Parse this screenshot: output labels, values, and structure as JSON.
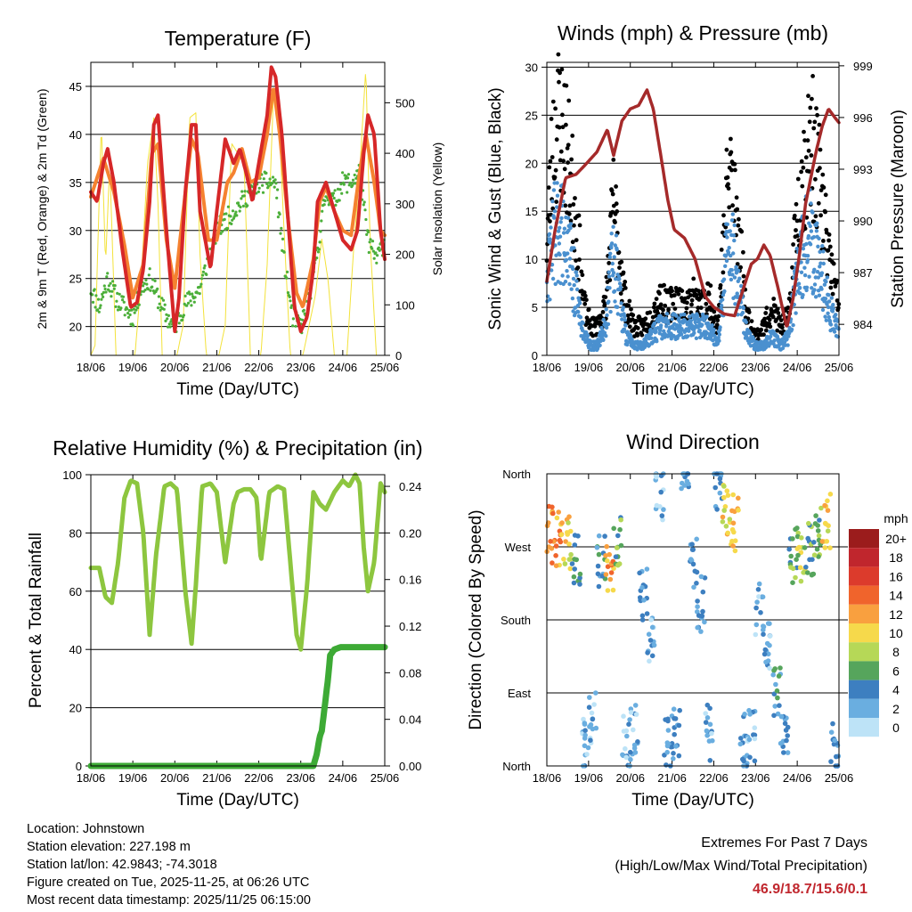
{
  "x_tick_labels": [
    "18/06",
    "19/06",
    "20/06",
    "21/06",
    "22/06",
    "23/06",
    "24/06",
    "25/06"
  ],
  "panels": {
    "temperature": {
      "title": "Temperature (F)",
      "ylabel_left": "2m & 9m T (Red, Orange) & 2m Td (Green)",
      "ylabel_right": "Solar Insolation (Yellow)",
      "xlabel": "Time (Day/UTC)",
      "left_ticks": [
        "20",
        "25",
        "30",
        "35",
        "40",
        "45"
      ],
      "right_ticks": [
        "0",
        "100",
        "200",
        "300",
        "400",
        "500"
      ]
    },
    "winds": {
      "title": "Winds (mph) & Pressure (mb)",
      "ylabel_left": "Sonic Wind & Gust (Blue, Black)",
      "ylabel_right": "Station Pressure (Maroon)",
      "xlabel": "Time (Day/UTC)",
      "left_ticks": [
        "0",
        "5",
        "10",
        "15",
        "20",
        "25",
        "30"
      ],
      "right_ticks": [
        "984",
        "987",
        "990",
        "993",
        "996",
        "999"
      ]
    },
    "humidity": {
      "title": "Relative Humidity (%) & Precipitation (in)",
      "ylabel_left": "Percent & Total Rainfall",
      "xlabel": "Time (Day/UTC)",
      "left_ticks": [
        "0",
        "20",
        "40",
        "60",
        "80",
        "100"
      ],
      "right_ticks": [
        "0.00",
        "0.04",
        "0.08",
        "0.12",
        "0.16",
        "0.20",
        "0.24"
      ]
    },
    "direction": {
      "title": "Wind Direction",
      "ylabel_left": "Direction (Colored By Speed)",
      "xlabel": "Time (Day/UTC)",
      "dir_ticks": [
        "North",
        "East",
        "South",
        "West",
        "North"
      ],
      "legend_title": "mph",
      "legend_labels": [
        "20+",
        "18",
        "16",
        "14",
        "12",
        "10",
        "8",
        "6",
        "4",
        "2",
        "0"
      ],
      "legend_colors": [
        "#9b1c1c",
        "#c0262d",
        "#dc3b2c",
        "#f0642c",
        "#f9a03f",
        "#f6d94b",
        "#b6d857",
        "#56a55c",
        "#3d7fc0",
        "#6aaee0",
        "#bde3f7"
      ]
    }
  },
  "chart_data": [
    {
      "type": "line",
      "title": "Temperature (F)",
      "xlabel": "Time (Day/UTC)",
      "ylabel": "2m & 9m T (Red, Orange) & 2m Td (Green)",
      "ylabel_right": "Solar Insolation (Yellow)",
      "x_unit": "days since 18/06",
      "ylim": [
        17,
        47.5
      ],
      "ylim_right": [
        0,
        580
      ],
      "series": [
        {
          "name": "2m T",
          "color": "#d62728",
          "axis": "left",
          "x": [
            0,
            0.15,
            0.3,
            0.4,
            0.55,
            0.75,
            0.95,
            1.1,
            1.25,
            1.4,
            1.5,
            1.6,
            1.8,
            2.0,
            2.1,
            2.25,
            2.4,
            2.5,
            2.6,
            2.85,
            3.0,
            3.2,
            3.4,
            3.55,
            3.7,
            3.85,
            4.0,
            4.2,
            4.3,
            4.4,
            4.55,
            4.7,
            4.85,
            5.0,
            5.15,
            5.3,
            5.4,
            5.6,
            5.8,
            6.0,
            6.2,
            6.35,
            6.5,
            6.6,
            6.75,
            6.9,
            7.0
          ],
          "values": [
            34,
            33,
            37,
            38.5,
            35,
            28,
            22,
            22.5,
            26,
            33,
            41,
            42,
            30,
            19.5,
            23,
            34,
            41,
            41,
            32,
            26,
            32,
            39.5,
            37,
            38.5,
            36,
            33,
            37,
            42,
            47,
            46,
            40,
            31,
            22,
            19.5,
            21,
            26,
            33,
            35,
            32,
            29,
            28,
            30,
            38,
            42,
            40,
            30,
            27
          ]
        },
        {
          "name": "9m T",
          "color": "#f58230",
          "axis": "left",
          "x": [
            0,
            0.3,
            0.55,
            0.8,
            1.0,
            1.25,
            1.45,
            1.6,
            1.8,
            2.0,
            2.2,
            2.4,
            2.55,
            2.8,
            3.0,
            3.25,
            3.4,
            3.6,
            3.8,
            4.0,
            4.2,
            4.35,
            4.5,
            4.7,
            4.9,
            5.05,
            5.3,
            5.45,
            5.6,
            5.8,
            6.0,
            6.2,
            6.4,
            6.55,
            6.75,
            6.9,
            7.0
          ],
          "values": [
            33.5,
            37.5,
            34,
            28.5,
            23,
            26.5,
            38,
            39,
            29,
            24,
            32,
            39.5,
            38,
            29,
            29,
            35,
            36,
            38.5,
            35,
            35.5,
            40,
            45,
            40,
            31,
            23.5,
            22,
            27,
            33,
            34.5,
            32,
            30,
            29.5,
            36,
            40,
            35,
            30,
            29.5
          ]
        },
        {
          "name": "2m Td",
          "color": "#4caf3a",
          "axis": "left",
          "x": [
            0,
            0.2,
            0.4,
            0.6,
            0.8,
            1.0,
            1.2,
            1.4,
            1.6,
            1.8,
            2.0,
            2.2,
            2.4,
            2.6,
            2.8,
            3.0,
            3.2,
            3.4,
            3.6,
            3.8,
            4.0,
            4.2,
            4.4,
            4.6,
            4.8,
            5.0,
            5.2,
            5.4,
            5.6,
            5.8,
            6.0,
            6.2,
            6.4,
            6.6,
            6.8,
            7.0
          ],
          "values": [
            24,
            22,
            25,
            23,
            22,
            21,
            24,
            25,
            23,
            21,
            20,
            22,
            23,
            24,
            27,
            30,
            31,
            32,
            33,
            34,
            35,
            35,
            35,
            27,
            21,
            20,
            23,
            28,
            34,
            33,
            35,
            35,
            36,
            29,
            27,
            29
          ]
        },
        {
          "name": "Solar Insolation",
          "color": "#f3e23a",
          "axis": "right",
          "x": [
            0,
            0.1,
            0.25,
            0.35,
            0.45,
            0.6,
            0.9,
            1.05,
            1.2,
            1.35,
            1.5,
            1.6,
            1.7,
            1.9,
            2.05,
            2.2,
            2.35,
            2.5,
            2.6,
            2.75,
            2.9,
            3.05,
            3.2,
            3.35,
            3.5,
            3.65,
            3.8,
            3.95,
            4.05,
            4.2,
            4.35,
            4.45,
            4.6,
            4.75,
            4.9,
            5.05,
            5.2,
            5.35,
            5.5,
            5.65,
            5.8,
            5.95,
            6.1,
            6.25,
            6.4,
            6.55,
            6.65,
            6.8,
            6.95,
            7.0
          ],
          "values": [
            0,
            20,
            460,
            180,
            380,
            0,
            0,
            0,
            150,
            380,
            470,
            300,
            0,
            0,
            0,
            60,
            470,
            480,
            200,
            0,
            0,
            0,
            60,
            420,
            400,
            380,
            0,
            0,
            0,
            180,
            520,
            520,
            250,
            0,
            0,
            0,
            60,
            120,
            230,
            150,
            0,
            0,
            0,
            200,
            360,
            570,
            230,
            0,
            0,
            0
          ]
        }
      ]
    },
    {
      "type": "scatter",
      "title": "Winds (mph) & Pressure (mb)",
      "xlabel": "Time (Day/UTC)",
      "ylabel": "Sonic Wind & Gust (Blue, Black)",
      "ylabel_right": "Station Pressure (Maroon)",
      "x_unit": "days since 18/06",
      "ylim": [
        0,
        30.5
      ],
      "ylim_right": [
        982.2,
        999.2
      ],
      "series": [
        {
          "name": "Gust",
          "color": "#000000",
          "axis": "left",
          "x": [
            0,
            0.15,
            0.3,
            0.45,
            0.6,
            0.75,
            0.9,
            1.05,
            1.2,
            1.4,
            1.6,
            1.75,
            1.9,
            2.1,
            2.3,
            2.5,
            2.7,
            2.9,
            3.1,
            3.3,
            3.5,
            3.7,
            3.9,
            4.1,
            4.3,
            4.4,
            4.6,
            4.8,
            5.0,
            5.2,
            5.4,
            5.6,
            5.8,
            6.0,
            6.2,
            6.35,
            6.5,
            6.7,
            6.9,
            7.0
          ],
          "values": [
            12,
            22,
            25,
            22,
            18,
            12,
            5,
            3,
            3,
            5,
            16,
            10,
            5,
            3,
            3,
            4,
            6,
            5,
            6,
            5,
            6,
            5,
            6,
            3,
            16,
            20,
            13,
            4,
            2,
            3,
            5,
            3,
            4,
            15,
            20,
            22,
            19,
            12,
            7,
            5
          ]
        },
        {
          "name": "Sonic Wind",
          "color": "#4a90cf",
          "axis": "left",
          "x": [
            0,
            0.15,
            0.3,
            0.45,
            0.6,
            0.75,
            0.9,
            1.05,
            1.2,
            1.4,
            1.6,
            1.75,
            1.9,
            2.1,
            2.3,
            2.5,
            2.7,
            2.9,
            3.1,
            3.3,
            3.5,
            3.7,
            3.9,
            4.1,
            4.3,
            4.4,
            4.6,
            4.8,
            5.0,
            5.2,
            5.4,
            5.6,
            5.8,
            6.0,
            6.2,
            6.35,
            6.5,
            6.7,
            6.9,
            7.0
          ],
          "values": [
            8,
            12,
            14,
            12,
            9,
            5,
            2,
            1,
            1,
            3,
            11,
            6,
            2,
            1,
            1,
            2,
            3,
            3,
            3,
            3,
            3,
            3,
            3,
            1,
            10,
            12,
            7,
            2,
            1,
            1,
            2,
            1,
            2,
            9,
            12,
            12,
            10,
            6,
            3,
            3
          ]
        },
        {
          "name": "Station Pressure",
          "color": "#a52a2a",
          "axis": "right",
          "x": [
            0,
            0.2,
            0.45,
            0.7,
            0.9,
            1.2,
            1.45,
            1.6,
            1.8,
            2.0,
            2.2,
            2.4,
            2.55,
            2.75,
            2.9,
            3.05,
            3.3,
            3.55,
            3.8,
            4.0,
            4.25,
            4.5,
            4.7,
            4.9,
            5.05,
            5.2,
            5.35,
            5.55,
            5.75,
            5.9,
            6.05,
            6.2,
            6.45,
            6.6,
            6.75,
            6.9,
            7.0
          ],
          "values": [
            986.5,
            989.5,
            992.5,
            992.7,
            993.2,
            994,
            995.3,
            993.8,
            995.8,
            996.5,
            996.7,
            997.6,
            996.5,
            993.5,
            991.2,
            989.5,
            989,
            987.8,
            985.6,
            985,
            984.6,
            984.5,
            986,
            987.5,
            987.8,
            988.6,
            988,
            986,
            983.8,
            985.5,
            988,
            991,
            994,
            995.5,
            996.5,
            996,
            995.7
          ]
        }
      ]
    },
    {
      "type": "line",
      "title": "Relative Humidity (%) & Precipitation (in)",
      "xlabel": "Time (Day/UTC)",
      "ylabel": "Percent & Total Rainfall",
      "x_unit": "days since 18/06",
      "ylim": [
        0,
        100
      ],
      "ylim_right": [
        0,
        0.25
      ],
      "series": [
        {
          "name": "Relative Humidity",
          "color": "#8dc63f",
          "axis": "left",
          "x": [
            0,
            0.2,
            0.35,
            0.5,
            0.65,
            0.8,
            0.95,
            1.1,
            1.25,
            1.4,
            1.55,
            1.75,
            1.9,
            2.05,
            2.25,
            2.4,
            2.5,
            2.65,
            2.85,
            3.0,
            3.2,
            3.4,
            3.5,
            3.65,
            3.8,
            3.95,
            4.05,
            4.25,
            4.45,
            4.6,
            4.75,
            4.9,
            5.0,
            5.15,
            5.3,
            5.45,
            5.6,
            5.8,
            6.0,
            6.15,
            6.3,
            6.4,
            6.5,
            6.6,
            6.75,
            6.9,
            7.0
          ],
          "values": [
            68,
            68,
            58,
            56,
            70,
            92,
            98,
            97,
            80,
            45,
            72,
            96,
            97,
            95,
            60,
            42,
            62,
            96,
            97,
            94,
            70,
            90,
            94,
            95,
            95,
            92,
            70,
            94,
            96,
            95,
            70,
            45,
            40,
            62,
            94,
            90,
            88,
            94,
            98,
            96,
            100,
            97,
            75,
            60,
            70,
            97,
            94
          ]
        },
        {
          "name": "Total Precipitation",
          "color": "#3daa35",
          "axis": "right",
          "x": [
            0,
            5.3,
            5.38,
            5.45,
            5.5,
            5.55,
            5.6,
            5.65,
            5.7,
            5.8,
            5.95,
            7.0
          ],
          "values": [
            0,
            0,
            0.01,
            0.025,
            0.03,
            0.045,
            0.06,
            0.075,
            0.095,
            0.1,
            0.102,
            0.102
          ]
        }
      ]
    },
    {
      "type": "scatter",
      "title": "Wind Direction",
      "xlabel": "Time (Day/UTC)",
      "ylabel": "Direction (Colored By Speed)",
      "x_unit": "days since 18/06",
      "ylim": [
        0,
        360
      ],
      "y_ticks": [
        "North",
        "East",
        "South",
        "West",
        "North"
      ],
      "color_scale_mph": [
        0,
        2,
        4,
        6,
        8,
        10,
        12,
        14,
        16,
        18,
        20
      ],
      "series": [
        {
          "name": "Direction (deg)",
          "x": [
            0.1,
            0.3,
            0.5,
            0.7,
            0.9,
            1.1,
            1.3,
            1.5,
            1.7,
            1.9,
            2.1,
            2.3,
            2.5,
            2.7,
            2.9,
            3.1,
            3.3,
            3.5,
            3.7,
            3.9,
            4.1,
            4.3,
            4.5,
            4.7,
            4.9,
            5.1,
            5.3,
            5.5,
            5.7,
            5.9,
            6.1,
            6.3,
            6.5,
            6.7,
            6.9
          ],
          "values": [
            285,
            280,
            275,
            250,
            30,
            60,
            250,
            240,
            280,
            30,
            40,
            210,
            160,
            330,
            30,
            40,
            355,
            250,
            200,
            40,
            350,
            315,
            300,
            30,
            40,
            190,
            150,
            90,
            50,
            260,
            255,
            270,
            285,
            300,
            20
          ],
          "speeds": [
            12,
            12,
            10,
            5,
            2,
            2,
            4,
            12,
            6,
            2,
            2,
            3,
            2,
            2,
            3,
            3,
            3,
            3,
            3,
            2,
            3,
            10,
            12,
            3,
            2,
            2,
            2,
            4,
            3,
            6,
            8,
            6,
            6,
            10,
            3
          ]
        }
      ]
    }
  ],
  "footer": {
    "location": "Location: Johnstown",
    "elevation": "Station elevation: 227.198 m",
    "latlon": "Station lat/lon: 42.9843; -74.3018",
    "created": "Figure created on Tue, 2025-11-25, at 06:26 UTC",
    "recent": "Most recent data timestamp: 2025/11/25 06:15:00"
  },
  "extremes": {
    "title": "Extremes For Past 7 Days",
    "subtitle": "(High/Low/Max Wind/Total Precipitation)",
    "values": "46.9/18.7/15.6/0.1"
  }
}
